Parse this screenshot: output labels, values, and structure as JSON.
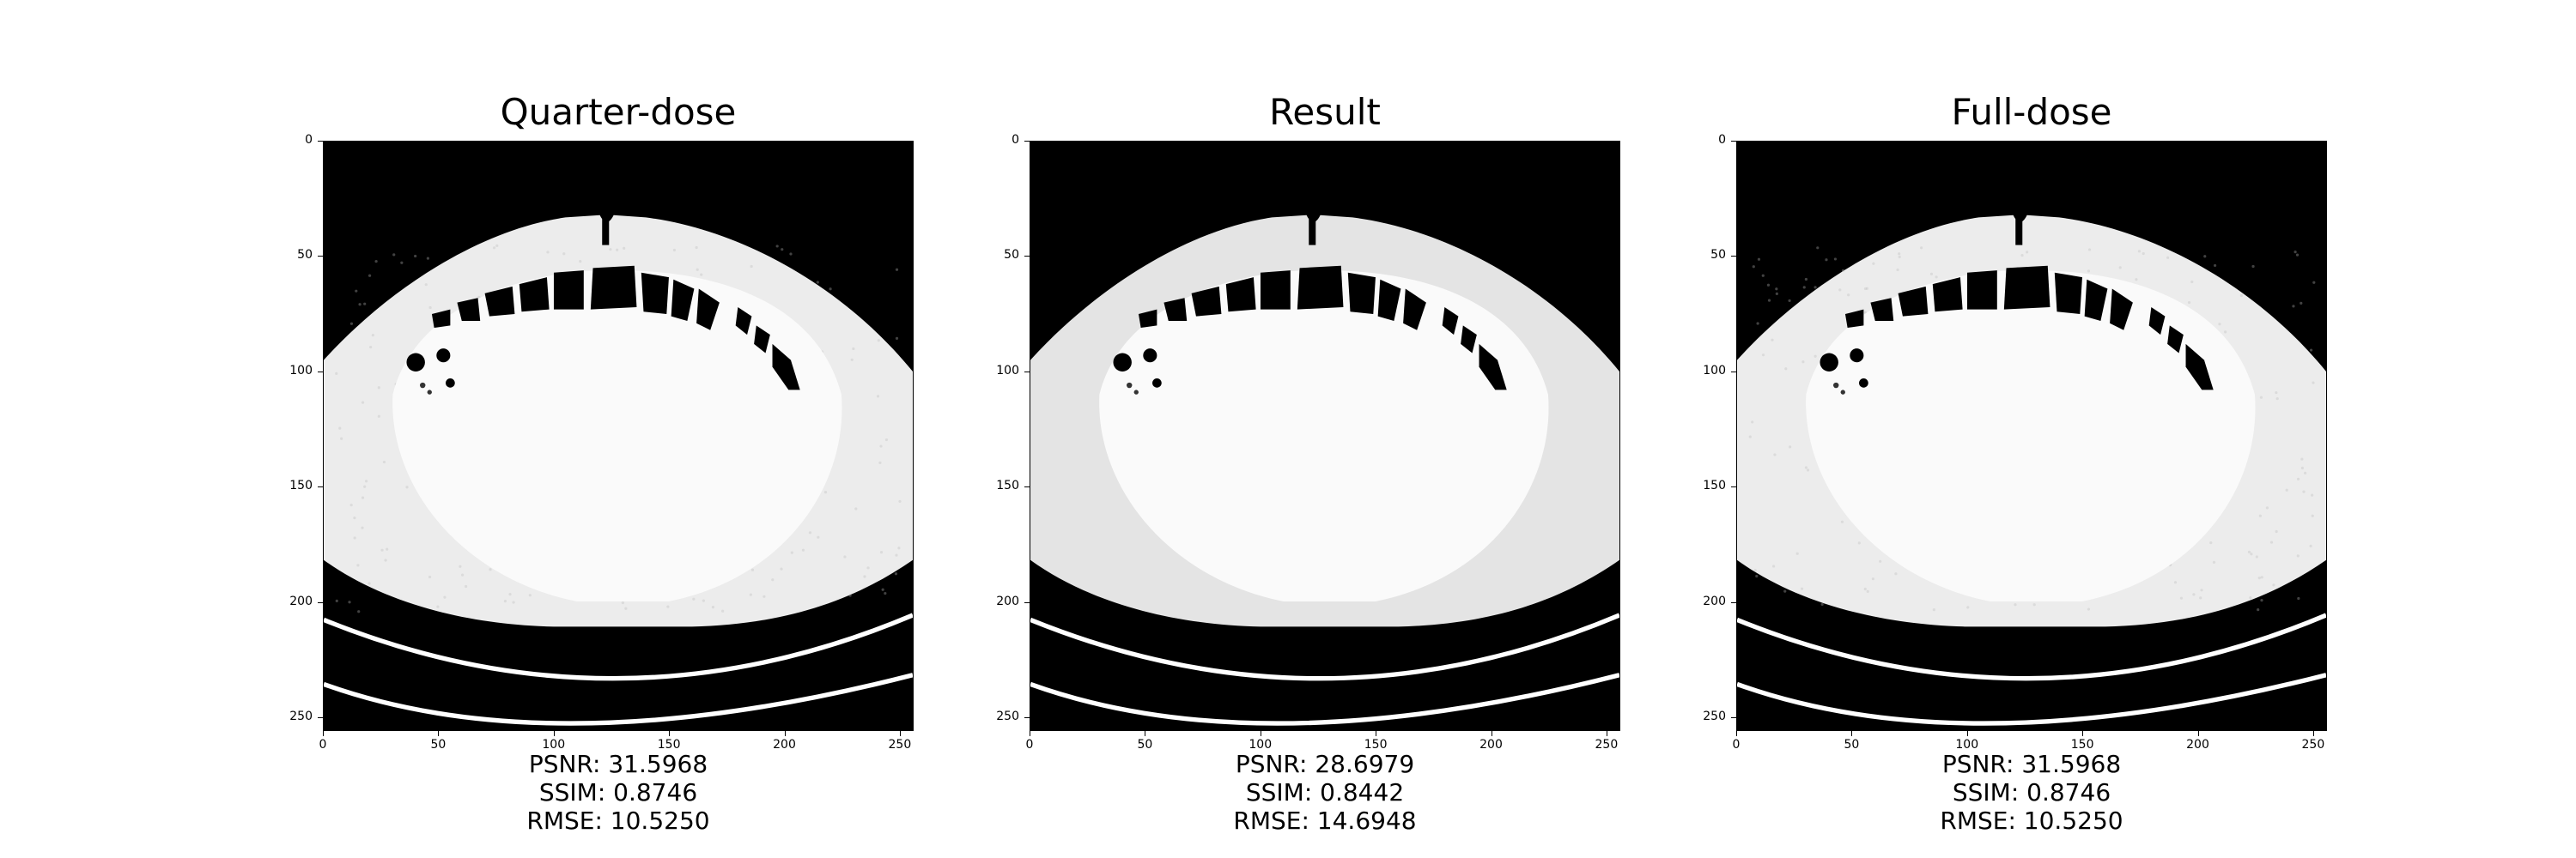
{
  "panels": [
    {
      "id": "quarter-dose",
      "title": "Quarter-dose",
      "metrics": {
        "psnr": "PSNR: 31.5968",
        "ssim": "SSIM: 0.8746",
        "rmse": "RMSE: 10.5250"
      }
    },
    {
      "id": "result",
      "title": "Result",
      "metrics": {
        "psnr": "PSNR: 28.6979",
        "ssim": "SSIM: 0.8442",
        "rmse": "RMSE: 14.6948"
      }
    },
    {
      "id": "full-dose",
      "title": "Full-dose",
      "metrics": {
        "psnr": "PSNR: 31.5968",
        "ssim": "SSIM: 0.8746",
        "rmse": "RMSE: 10.5250"
      }
    }
  ],
  "axes": {
    "y_ticks": [
      "0",
      "50",
      "100",
      "150",
      "200",
      "250"
    ],
    "x_ticks": [
      "0",
      "50",
      "100",
      "150",
      "200",
      "250"
    ],
    "range": [
      0,
      256
    ]
  },
  "colors": {
    "background": "#000000",
    "tissue": "#f2f2f2",
    "air": "#000000"
  }
}
